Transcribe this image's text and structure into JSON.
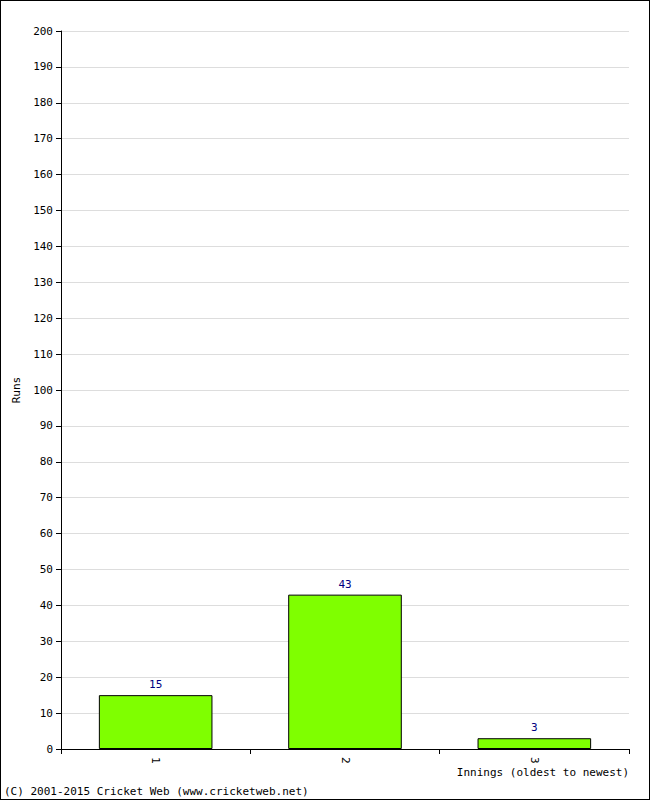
{
  "chart_data": {
    "type": "bar",
    "categories": [
      "1",
      "2",
      "3"
    ],
    "values": [
      15,
      43,
      3
    ],
    "color": "#7fff00",
    "x_label": "Innings (oldest to newest)",
    "y_label": "Runs",
    "ylim": [
      0,
      200
    ],
    "yticks": [
      0,
      10,
      20,
      30,
      40,
      50,
      60,
      70,
      80,
      90,
      100,
      110,
      120,
      130,
      140,
      150,
      160,
      170,
      180,
      190,
      200
    ],
    "grid": true,
    "data_labels": true,
    "annotations": [
      "(C) 2001-2015 Cricket Web (www.cricketweb.net)"
    ]
  }
}
